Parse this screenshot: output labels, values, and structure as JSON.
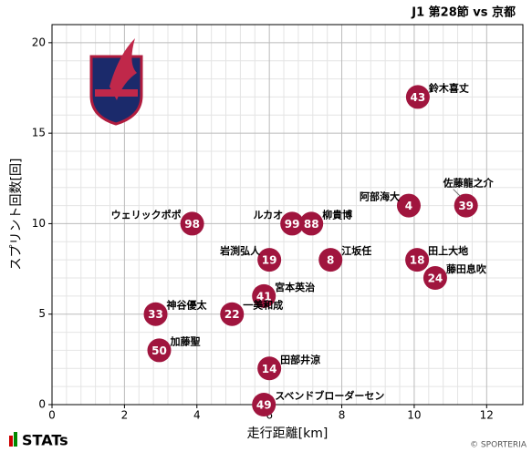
{
  "chart_data": {
    "type": "scatter",
    "title": "J1 第28節 vs 京都",
    "x_label": "走行距離[km]",
    "y_label": "スプリント回数[回]",
    "xlim": [
      0,
      13
    ],
    "ylim": [
      0,
      21
    ],
    "xticks": [
      0,
      2,
      4,
      6,
      8,
      10,
      12
    ],
    "yticks": [
      0,
      5,
      10,
      15,
      20
    ],
    "grid": true,
    "color": "#a0153e",
    "numbers": [
      43,
      4,
      39,
      98,
      99,
      88,
      19,
      8,
      18,
      24,
      41,
      33,
      22,
      50,
      14,
      49
    ],
    "names": [
      "鈴木喜丈",
      "阿部海大",
      "佐藤龍之介",
      "ウェリックポポ",
      "ルカオ",
      "柳貴博",
      "岩渕弘人",
      "江坂任",
      "田上大地",
      "藤田息吹",
      "宮本英治",
      "神谷優太",
      "一美和成",
      "加藤聖",
      "田部井涼",
      "スベンドブローダーセン"
    ],
    "x": [
      10.1,
      9.85,
      11.43,
      3.87,
      6.63,
      7.16,
      6.0,
      7.69,
      10.08,
      10.58,
      5.85,
      2.86,
      4.97,
      2.96,
      6.0,
      5.85
    ],
    "values": [
      17,
      11,
      11,
      10,
      10,
      10,
      8,
      8,
      8,
      7,
      6,
      5,
      5,
      3,
      2,
      0
    ]
  },
  "footer": {
    "brand": "STATs",
    "credit": "© SPORTERIA"
  }
}
